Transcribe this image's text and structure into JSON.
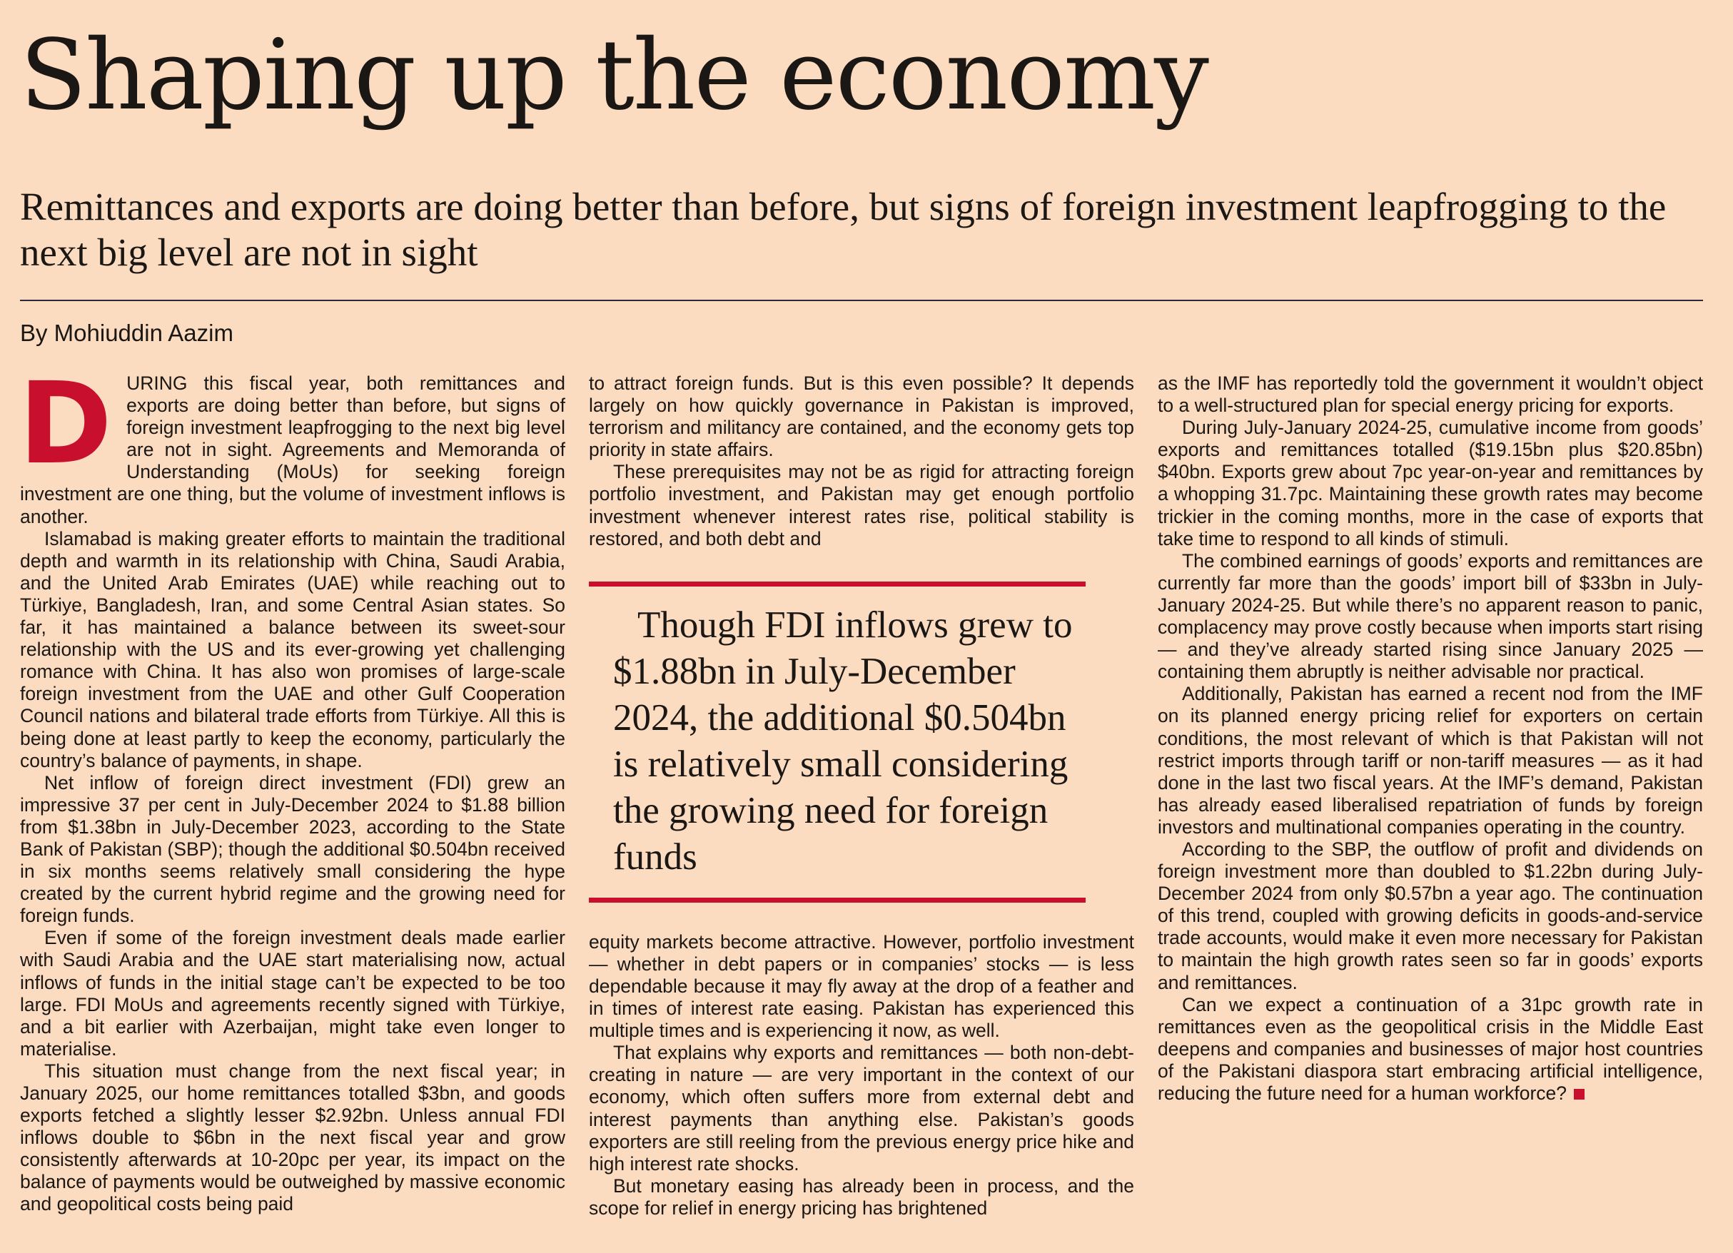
{
  "article": {
    "headline": "Shaping up the economy",
    "standfirst": "Remittances and exports are doing better than before, but signs of foreign investment leapfrogging to the next big level are not in sight",
    "byline": "By Mohiuddin Aazim",
    "drop_cap": "D",
    "intro": "URING this fiscal year, both remittances and exports are doing better than before, but signs of foreign investment leapfrogging to the next big level are not in sight. Agreements and Memoranda of Understanding (MoUs) for seeking foreign investment are one thing, but the volume of investment inflows is another.",
    "col1_paragraphs": [
      "Islamabad is making greater efforts to maintain the traditional depth and warmth in its relationship with China, Saudi Arabia, and the United Arab Emirates (UAE) while reaching out to Türkiye, Bangladesh, Iran, and some Central Asian states. So far, it has maintained a balance between its sweet-sour relationship with the US and its ever-growing yet challenging romance with China. It has also won promises of large-scale foreign investment from the UAE and other Gulf Cooperation Council nations and bilateral trade efforts from Türkiye. All this is being done at least partly to keep the economy, particularly the country’s balance of payments, in shape.",
      "Net inflow of foreign direct investment (FDI) grew an impressive 37 per cent in July-December 2024 to $1.88 billion from $1.38bn in July-December 2023, according to the State Bank of Pakistan (SBP); though the additional $0.504bn received in six months seems relatively small considering the hype created by the current hybrid regime and the growing need for foreign funds.",
      "Even if some of the foreign investment deals made earlier with Saudi Arabia and the UAE start materialising now, actual inflows of funds in the initial stage can’t be expected to be too large. FDI MoUs and agreements recently signed with Türkiye, and a bit earlier with Azerbaijan, might take even longer to materialise.",
      "This situation must change from the next fiscal year; in January 2025, our home remittances totalled $3bn, and goods exports fetched a slightly lesser $2.92bn. Unless annual FDI inflows double to $6bn in the next fiscal year and grow consistently afterwards at 10-20pc per year, its impact on the balance of payments would be outweighed by massive economic and geopolitical costs being paid"
    ],
    "col2_top": [
      "to attract foreign funds. But is this even possible? It depends largely on how quickly governance in Pakistan is improved, terrorism and militancy are contained, and the economy gets top priority in state affairs.",
      "These prerequisites may not be as rigid for attracting foreign portfolio investment, and Pakistan may get enough portfolio investment whenever interest rates rise, political stability is restored, and both debt and"
    ],
    "pullquote": "Though FDI inflows grew to $1.88bn in July-December 2024, the additional $0.504bn is relatively small considering the growing need for foreign funds",
    "col2_bottom": [
      "equity markets become attractive. However, portfolio investment — whether in debt papers or in companies’ stocks — is less dependable because it may fly away at the drop of a feather and in times of interest rate easing. Pakistan has experienced this multiple times and is experiencing it now, as well.",
      "That explains why exports and remittances — both non-debt-creating in nature — are very important in the context of our economy, which often suffers more from external debt and interest payments than anything else. Pakistan’s goods exporters are still reeling from the previous energy price hike and high interest rate shocks.",
      "But monetary easing has already been in process, and the scope for relief in energy pricing has brightened"
    ],
    "col3_paragraphs": [
      "as the IMF has reportedly told the government it wouldn’t object to a well-structured plan for special energy pricing for exports.",
      "During July-January 2024-25, cumulative income from goods’ exports and remittances totalled ($19.15bn plus $20.85bn) $40bn. Exports grew about 7pc year-on-year and remittances by a whopping 31.7pc. Maintaining these growth rates may become trickier in the coming months, more in the case of exports that take time to respond to all kinds of stimuli.",
      "The combined earnings of goods’ exports and remittances are currently far more than the goods’ import bill of $33bn in July-January 2024-25. But while there’s no apparent reason to panic, complacency may prove costly because when imports start rising — and they’ve already started rising since January 2025 — containing them abruptly is neither advisable nor practical.",
      "Additionally, Pakistan has earned a recent nod from the IMF on its planned energy pricing relief for exporters on certain conditions, the most relevant of which is that Pakistan will not restrict imports through tariff or non-tariff measures — as it had done in the last two fiscal years. At the IMF’s demand, Pakistan has already eased liberalised repatriation of funds by foreign investors and multinational companies operating in the country.",
      "According to the SBP, the outflow of profit and dividends on foreign investment more than doubled to $1.22bn during July-December 2024 from only $0.57bn a year ago. The continuation of this trend, coupled with growing deficits in goods-and-service trade accounts, would make it even more necessary for Pakistan to maintain the high growth rates seen so far in goods’ exports and remittances.",
      "Can we expect a continuation of a 31pc growth rate in remittances even as the geopolitical crisis in the Middle East deepens and companies and businesses of major host countries of the Pakistani diaspora start embracing artificial intelligence, reducing the future need for a human workforce?"
    ]
  },
  "colors": {
    "background": "#fcdcc0",
    "accent": "#c8102e",
    "text": "#1b1714",
    "rule": "#2a2b3a"
  }
}
